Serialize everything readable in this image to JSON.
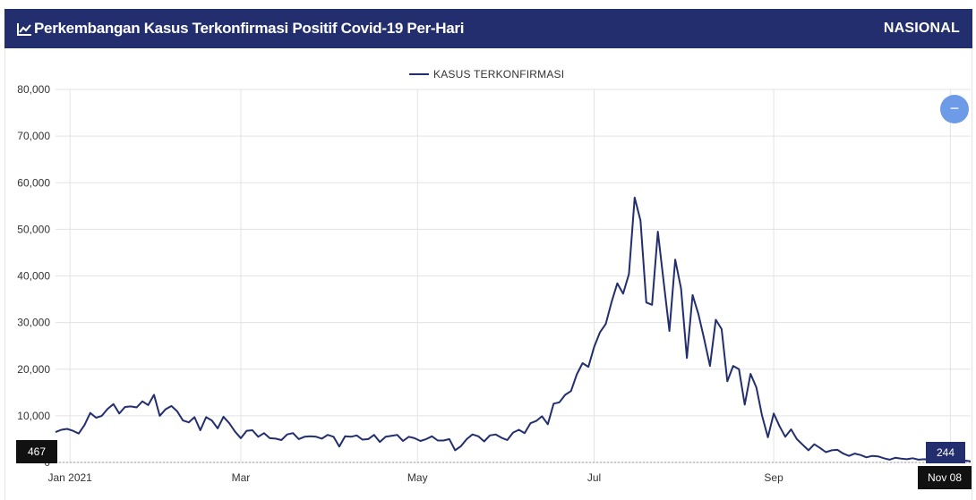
{
  "header": {
    "title": "Perkembangan Kasus Terkonfirmasi Positif Covid-19 Per-Hari",
    "region": "NASIONAL",
    "icon": "line-chart-icon"
  },
  "controls": {
    "zoom_out_symbol": "−"
  },
  "flags": {
    "left_value": "467",
    "right_value": "244",
    "date_label": "Nov 08"
  },
  "colors": {
    "header_bg": "#232e6e",
    "series_line": "#232e6e",
    "zoom_button": "#6d9be8",
    "grid": "#e3e3e3"
  },
  "chart_data": {
    "type": "line",
    "title": "Perkembangan Kasus Terkonfirmasi Positif Covid-19 Per-Hari",
    "xlabel": "",
    "ylabel": "",
    "ylim": [
      0,
      80000
    ],
    "yticks": [
      0,
      10000,
      20000,
      30000,
      40000,
      50000,
      60000,
      70000,
      80000
    ],
    "ytick_labels": [
      "0",
      "10,000",
      "20,000",
      "30,000",
      "40,000",
      "50,000",
      "60,000",
      "70,000",
      "80,000"
    ],
    "xlim": [
      "2020-12-27",
      "2021-11-08"
    ],
    "xticks": [
      "2021-01-01",
      "2021-03-01",
      "2021-05-01",
      "2021-07-01",
      "2021-09-01",
      "2021-11-01"
    ],
    "xtick_labels": [
      "Jan 2021",
      "Mar",
      "May",
      "Jul",
      "Sep",
      ""
    ],
    "grid": true,
    "legend_position": "top-center",
    "series": [
      {
        "name": "KASUS TERKONFIRMASI",
        "points": [
          [
            "2020-12-27",
            6500
          ],
          [
            "2020-12-29",
            7000
          ],
          [
            "2020-12-31",
            7200
          ],
          [
            "2021-01-02",
            6800
          ],
          [
            "2021-01-04",
            6200
          ],
          [
            "2021-01-06",
            8000
          ],
          [
            "2021-01-08",
            10600
          ],
          [
            "2021-01-10",
            9600
          ],
          [
            "2021-01-12",
            10000
          ],
          [
            "2021-01-14",
            11500
          ],
          [
            "2021-01-16",
            12500
          ],
          [
            "2021-01-18",
            10500
          ],
          [
            "2021-01-20",
            11900
          ],
          [
            "2021-01-22",
            12000
          ],
          [
            "2021-01-24",
            11800
          ],
          [
            "2021-01-26",
            13100
          ],
          [
            "2021-01-28",
            12300
          ],
          [
            "2021-01-30",
            14500
          ],
          [
            "2021-02-01",
            10000
          ],
          [
            "2021-02-03",
            11400
          ],
          [
            "2021-02-05",
            12100
          ],
          [
            "2021-02-07",
            11000
          ],
          [
            "2021-02-09",
            9000
          ],
          [
            "2021-02-11",
            8600
          ],
          [
            "2021-02-13",
            9700
          ],
          [
            "2021-02-15",
            6900
          ],
          [
            "2021-02-17",
            9700
          ],
          [
            "2021-02-19",
            9000
          ],
          [
            "2021-02-21",
            7300
          ],
          [
            "2021-02-23",
            9800
          ],
          [
            "2021-02-25",
            8400
          ],
          [
            "2021-02-27",
            6600
          ],
          [
            "2021-03-01",
            5200
          ],
          [
            "2021-03-03",
            6800
          ],
          [
            "2021-03-05",
            6900
          ],
          [
            "2021-03-07",
            5500
          ],
          [
            "2021-03-09",
            6300
          ],
          [
            "2021-03-11",
            5200
          ],
          [
            "2021-03-13",
            5100
          ],
          [
            "2021-03-15",
            4800
          ],
          [
            "2021-03-17",
            6000
          ],
          [
            "2021-03-19",
            6300
          ],
          [
            "2021-03-21",
            5000
          ],
          [
            "2021-03-23",
            5500
          ],
          [
            "2021-03-25",
            5600
          ],
          [
            "2021-03-27",
            5500
          ],
          [
            "2021-03-29",
            5100
          ],
          [
            "2021-03-31",
            5900
          ],
          [
            "2021-04-02",
            5500
          ],
          [
            "2021-04-04",
            3400
          ],
          [
            "2021-04-06",
            5600
          ],
          [
            "2021-04-08",
            5500
          ],
          [
            "2021-04-10",
            5800
          ],
          [
            "2021-04-12",
            4900
          ],
          [
            "2021-04-14",
            5000
          ],
          [
            "2021-04-16",
            5900
          ],
          [
            "2021-04-18",
            4400
          ],
          [
            "2021-04-20",
            5500
          ],
          [
            "2021-04-22",
            5700
          ],
          [
            "2021-04-24",
            5900
          ],
          [
            "2021-04-26",
            4600
          ],
          [
            "2021-04-28",
            5500
          ],
          [
            "2021-04-30",
            5200
          ],
          [
            "2021-05-02",
            4600
          ],
          [
            "2021-05-04",
            5000
          ],
          [
            "2021-05-06",
            5600
          ],
          [
            "2021-05-08",
            4700
          ],
          [
            "2021-05-10",
            4700
          ],
          [
            "2021-05-12",
            5000
          ],
          [
            "2021-05-14",
            2600
          ],
          [
            "2021-05-16",
            3500
          ],
          [
            "2021-05-18",
            5000
          ],
          [
            "2021-05-20",
            6000
          ],
          [
            "2021-05-22",
            5600
          ],
          [
            "2021-05-24",
            4500
          ],
          [
            "2021-05-26",
            5800
          ],
          [
            "2021-05-28",
            6000
          ],
          [
            "2021-05-30",
            5300
          ],
          [
            "2021-06-01",
            4800
          ],
          [
            "2021-06-03",
            6400
          ],
          [
            "2021-06-05",
            7000
          ],
          [
            "2021-06-07",
            6300
          ],
          [
            "2021-06-09",
            8400
          ],
          [
            "2021-06-11",
            8900
          ],
          [
            "2021-06-13",
            9900
          ],
          [
            "2021-06-15",
            8200
          ],
          [
            "2021-06-17",
            12600
          ],
          [
            "2021-06-19",
            12900
          ],
          [
            "2021-06-21",
            14500
          ],
          [
            "2021-06-23",
            15300
          ],
          [
            "2021-06-25",
            18900
          ],
          [
            "2021-06-27",
            21300
          ],
          [
            "2021-06-29",
            20500
          ],
          [
            "2021-07-01",
            24800
          ],
          [
            "2021-07-03",
            27900
          ],
          [
            "2021-07-05",
            29700
          ],
          [
            "2021-07-07",
            34400
          ],
          [
            "2021-07-09",
            38400
          ],
          [
            "2021-07-11",
            36200
          ],
          [
            "2021-07-13",
            40400
          ],
          [
            "2021-07-15",
            56800
          ],
          [
            "2021-07-17",
            51900
          ],
          [
            "2021-07-19",
            34300
          ],
          [
            "2021-07-21",
            33800
          ],
          [
            "2021-07-23",
            49500
          ],
          [
            "2021-07-25",
            38700
          ],
          [
            "2021-07-27",
            28200
          ],
          [
            "2021-07-29",
            43500
          ],
          [
            "2021-07-31",
            37300
          ],
          [
            "2021-08-02",
            22400
          ],
          [
            "2021-08-04",
            35900
          ],
          [
            "2021-08-06",
            31800
          ],
          [
            "2021-08-08",
            26400
          ],
          [
            "2021-08-10",
            20700
          ],
          [
            "2021-08-12",
            30600
          ],
          [
            "2021-08-14",
            28600
          ],
          [
            "2021-08-16",
            17400
          ],
          [
            "2021-08-18",
            20700
          ],
          [
            "2021-08-20",
            20000
          ],
          [
            "2021-08-22",
            12400
          ],
          [
            "2021-08-24",
            19000
          ],
          [
            "2021-08-26",
            16100
          ],
          [
            "2021-08-28",
            10000
          ],
          [
            "2021-08-30",
            5400
          ],
          [
            "2021-09-01",
            10500
          ],
          [
            "2021-09-03",
            7800
          ],
          [
            "2021-09-05",
            5500
          ],
          [
            "2021-09-07",
            7100
          ],
          [
            "2021-09-09",
            5000
          ],
          [
            "2021-09-11",
            3800
          ],
          [
            "2021-09-13",
            2600
          ],
          [
            "2021-09-15",
            3900
          ],
          [
            "2021-09-17",
            3100
          ],
          [
            "2021-09-19",
            2200
          ],
          [
            "2021-09-21",
            2600
          ],
          [
            "2021-09-23",
            2700
          ],
          [
            "2021-09-25",
            1900
          ],
          [
            "2021-09-27",
            1400
          ],
          [
            "2021-09-29",
            1900
          ],
          [
            "2021-10-01",
            1600
          ],
          [
            "2021-10-03",
            1100
          ],
          [
            "2021-10-05",
            1400
          ],
          [
            "2021-10-07",
            1300
          ],
          [
            "2021-10-09",
            900
          ],
          [
            "2021-10-11",
            600
          ],
          [
            "2021-10-13",
            1000
          ],
          [
            "2021-10-15",
            800
          ],
          [
            "2021-10-17",
            700
          ],
          [
            "2021-10-19",
            900
          ],
          [
            "2021-10-21",
            600
          ],
          [
            "2021-10-23",
            700
          ],
          [
            "2021-10-25",
            500
          ],
          [
            "2021-10-27",
            600
          ],
          [
            "2021-10-29",
            700
          ],
          [
            "2021-10-31",
            400
          ],
          [
            "2021-11-02",
            600
          ],
          [
            "2021-11-04",
            400
          ],
          [
            "2021-11-06",
            400
          ],
          [
            "2021-11-08",
            244
          ]
        ]
      }
    ]
  }
}
